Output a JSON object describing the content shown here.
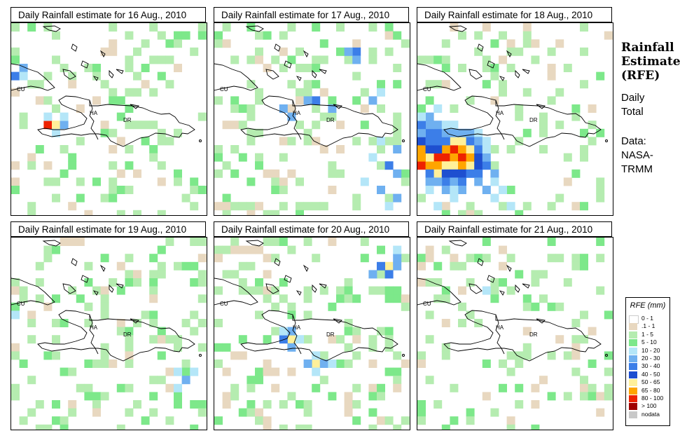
{
  "panels": [
    {
      "title": "Daily Rainfall estimate for  16 Aug., 2010",
      "seed": 16,
      "heavy": [
        {
          "r": 12,
          "c": 4,
          "v": "80-100"
        },
        {
          "r": 12,
          "c": 5,
          "v": "50-65"
        },
        {
          "r": 12,
          "c": 6,
          "v": "20-30"
        },
        {
          "r": 11,
          "c": 6,
          "v": "10-20"
        },
        {
          "r": 6,
          "c": 0,
          "v": "30-40"
        },
        {
          "r": 5,
          "c": 1,
          "v": "20-30"
        },
        {
          "r": 6,
          "c": 1,
          "v": "10-20"
        },
        {
          "r": 13,
          "c": 5,
          "v": "10-20"
        },
        {
          "r": 11,
          "c": 4,
          "v": "10-20"
        }
      ]
    },
    {
      "title": "Daily Rainfall estimate for  17 Aug., 2010",
      "seed": 17,
      "heavy": [
        {
          "r": 3,
          "c": 17,
          "v": "30-40"
        },
        {
          "r": 3,
          "c": 16,
          "v": "20-30"
        },
        {
          "r": 4,
          "c": 17,
          "v": "20-30"
        },
        {
          "r": 9,
          "c": 12,
          "v": "30-40"
        },
        {
          "r": 9,
          "c": 11,
          "v": "20-30"
        },
        {
          "r": 10,
          "c": 14,
          "v": "20-30"
        },
        {
          "r": 9,
          "c": 19,
          "v": "20-30"
        },
        {
          "r": 8,
          "c": 20,
          "v": "10-20"
        },
        {
          "r": 10,
          "c": 8,
          "v": "20-30"
        },
        {
          "r": 11,
          "c": 9,
          "v": "20-30"
        },
        {
          "r": 15,
          "c": 22,
          "v": "20-30"
        },
        {
          "r": 17,
          "c": 21,
          "v": "30-40"
        },
        {
          "r": 18,
          "c": 22,
          "v": "20-30"
        },
        {
          "r": 20,
          "c": 20,
          "v": "20-30"
        },
        {
          "r": 16,
          "c": 19,
          "v": "10-20"
        },
        {
          "r": 19,
          "c": 18,
          "v": "10-20"
        },
        {
          "r": 21,
          "c": 22,
          "v": "20-30"
        },
        {
          "r": 14,
          "c": 20,
          "v": "10-20"
        },
        {
          "r": 22,
          "c": 21,
          "v": "10-20"
        }
      ]
    },
    {
      "title": "Daily Rainfall estimate for  18 Aug., 2010",
      "seed": 18,
      "heavy": [
        {
          "r": 16,
          "c": 2,
          "v": "80-100"
        },
        {
          "r": 16,
          "c": 3,
          "v": "80-100"
        },
        {
          "r": 16,
          "c": 4,
          "v": "65-80"
        },
        {
          "r": 16,
          "c": 5,
          "v": "80-100"
        },
        {
          "r": 15,
          "c": 4,
          "v": "80-100"
        },
        {
          "r": 15,
          "c": 5,
          "v": "65-80"
        },
        {
          "r": 17,
          "c": 0,
          "v": "80-100"
        },
        {
          "r": 17,
          "c": 1,
          "v": "65-80"
        },
        {
          "r": 17,
          "c": 2,
          "v": "65-80"
        },
        {
          "r": 17,
          "c": 3,
          "v": "50-65"
        },
        {
          "r": 17,
          "c": 4,
          "v": "50-65"
        },
        {
          "r": 17,
          "c": 5,
          "v": "65-80"
        },
        {
          "r": 17,
          "c": 6,
          "v": "50-65"
        },
        {
          "r": 16,
          "c": 6,
          "v": "65-80"
        },
        {
          "r": 15,
          "c": 6,
          "v": "50-65"
        },
        {
          "r": 14,
          "c": 5,
          "v": "50-65"
        },
        {
          "r": 14,
          "c": 4,
          "v": "50-65"
        },
        {
          "r": 15,
          "c": 3,
          "v": "65-80"
        },
        {
          "r": 16,
          "c": 1,
          "v": "50-65"
        },
        {
          "r": 15,
          "c": 0,
          "v": "65-80"
        },
        {
          "r": 16,
          "c": 0,
          "v": "65-80"
        },
        {
          "r": 18,
          "c": 2,
          "v": "50-65"
        },
        {
          "r": 18,
          "c": 3,
          "v": "40-50"
        },
        {
          "r": 18,
          "c": 4,
          "v": "40-50"
        },
        {
          "r": 18,
          "c": 5,
          "v": "40-50"
        },
        {
          "r": 18,
          "c": 6,
          "v": "30-40"
        },
        {
          "r": 17,
          "c": 7,
          "v": "40-50"
        },
        {
          "r": 16,
          "c": 7,
          "v": "40-50"
        },
        {
          "r": 15,
          "c": 7,
          "v": "30-40"
        },
        {
          "r": 14,
          "c": 3,
          "v": "30-40"
        },
        {
          "r": 14,
          "c": 6,
          "v": "30-40"
        },
        {
          "r": 13,
          "c": 2,
          "v": "30-40"
        },
        {
          "r": 13,
          "c": 1,
          "v": "30-40"
        },
        {
          "r": 15,
          "c": 1,
          "v": "40-50"
        },
        {
          "r": 15,
          "c": 2,
          "v": "40-50"
        },
        {
          "r": 14,
          "c": 0,
          "v": "40-50"
        },
        {
          "r": 14,
          "c": 1,
          "v": "30-40"
        },
        {
          "r": 14,
          "c": 2,
          "v": "30-40"
        },
        {
          "r": 13,
          "c": 0,
          "v": "20-30"
        },
        {
          "r": 12,
          "c": 1,
          "v": "20-30"
        },
        {
          "r": 12,
          "c": 2,
          "v": "20-30"
        },
        {
          "r": 12,
          "c": 0,
          "v": "30-40"
        },
        {
          "r": 11,
          "c": 1,
          "v": "20-30"
        },
        {
          "r": 19,
          "c": 3,
          "v": "30-40"
        },
        {
          "r": 19,
          "c": 4,
          "v": "20-30"
        },
        {
          "r": 19,
          "c": 5,
          "v": "30-40"
        },
        {
          "r": 18,
          "c": 7,
          "v": "30-40"
        },
        {
          "r": 18,
          "c": 1,
          "v": "30-40"
        },
        {
          "r": 19,
          "c": 1,
          "v": "20-30"
        },
        {
          "r": 19,
          "c": 2,
          "v": "20-30"
        },
        {
          "r": 20,
          "c": 3,
          "v": "20-30"
        },
        {
          "r": 20,
          "c": 5,
          "v": "20-30"
        },
        {
          "r": 17,
          "c": 8,
          "v": "30-40"
        },
        {
          "r": 16,
          "c": 8,
          "v": "20-30"
        },
        {
          "r": 19,
          "c": 7,
          "v": "20-30"
        },
        {
          "r": 18,
          "c": 9,
          "v": "20-30"
        },
        {
          "r": 20,
          "c": 8,
          "v": "20-30"
        },
        {
          "r": 15,
          "c": 8,
          "v": "10-20"
        },
        {
          "r": 13,
          "c": 5,
          "v": "20-30"
        },
        {
          "r": 13,
          "c": 6,
          "v": "20-30"
        },
        {
          "r": 13,
          "c": 7,
          "v": "10-20"
        },
        {
          "r": 14,
          "c": 7,
          "v": "20-30"
        },
        {
          "r": 13,
          "c": 3,
          "v": "20-30"
        },
        {
          "r": 13,
          "c": 4,
          "v": "20-30"
        },
        {
          "r": 12,
          "c": 3,
          "v": "10-20"
        },
        {
          "r": 12,
          "c": 4,
          "v": "10-20"
        },
        {
          "r": 20,
          "c": 1,
          "v": "10-20"
        },
        {
          "r": 20,
          "c": 4,
          "v": "10-20"
        },
        {
          "r": 21,
          "c": 4,
          "v": "10-20"
        },
        {
          "r": 21,
          "c": 9,
          "v": "10-20"
        },
        {
          "r": 20,
          "c": 10,
          "v": "10-20"
        },
        {
          "r": 19,
          "c": 9,
          "v": "10-20"
        },
        {
          "r": 22,
          "c": 2,
          "v": "10-20"
        },
        {
          "r": 22,
          "c": 11,
          "v": "10-20"
        },
        {
          "r": 14,
          "c": 8,
          "v": "10-20"
        },
        {
          "r": 10,
          "c": 2,
          "v": "10-20"
        },
        {
          "r": 11,
          "c": 0,
          "v": "10-20"
        }
      ]
    },
    {
      "title": "Daily Rainfall estimate for  19 Aug., 2010",
      "seed": 19,
      "heavy": [
        {
          "r": 17,
          "c": 21,
          "v": "20-30"
        },
        {
          "r": 16,
          "c": 22,
          "v": "10-20"
        },
        {
          "r": 18,
          "c": 20,
          "v": "10-20"
        },
        {
          "r": 16,
          "c": 20,
          "v": "10-20"
        },
        {
          "r": 9,
          "c": 0,
          "v": "10-20"
        }
      ]
    },
    {
      "title": "Daily Rainfall estimate for  20 Aug., 2010",
      "seed": 20,
      "heavy": [
        {
          "r": 3,
          "c": 21,
          "v": "50-65"
        },
        {
          "r": 3,
          "c": 20,
          "v": "30-40"
        },
        {
          "r": 4,
          "c": 21,
          "v": "30-40"
        },
        {
          "r": 2,
          "c": 22,
          "v": "20-30"
        },
        {
          "r": 4,
          "c": 19,
          "v": "20-30"
        },
        {
          "r": 1,
          "c": 22,
          "v": "10-20"
        },
        {
          "r": 3,
          "c": 22,
          "v": "20-30"
        },
        {
          "r": 12,
          "c": 9,
          "v": "50-65"
        },
        {
          "r": 12,
          "c": 8,
          "v": "30-40"
        },
        {
          "r": 11,
          "c": 9,
          "v": "20-30"
        },
        {
          "r": 12,
          "c": 10,
          "v": "10-20"
        },
        {
          "r": 13,
          "c": 9,
          "v": "20-30"
        },
        {
          "r": 11,
          "c": 8,
          "v": "10-20"
        },
        {
          "r": 15,
          "c": 12,
          "v": "50-65"
        },
        {
          "r": 15,
          "c": 13,
          "v": "20-30"
        },
        {
          "r": 14,
          "c": 12,
          "v": "10-20"
        },
        {
          "r": 15,
          "c": 11,
          "v": "20-30"
        },
        {
          "r": 16,
          "c": 12,
          "v": "10-20"
        },
        {
          "r": 15,
          "c": 14,
          "v": "10-20"
        }
      ]
    },
    {
      "title": "Daily Rainfall estimate for  21 Aug., 2010",
      "seed": 21,
      "heavy": [
        {
          "r": 6,
          "c": 8,
          "v": "10-20"
        }
      ]
    }
  ],
  "map_labels": {
    "cuba": "CU",
    "haiti": "HA",
    "dominican_republic": "DR"
  },
  "side": {
    "title_lines": [
      "Rainfall",
      "Estimate",
      "(RFE)"
    ],
    "daily": "Daily",
    "total": "Total",
    "data_label": "Data:",
    "source_1": "NASA-",
    "source_2": "TRMM"
  },
  "legend": {
    "title": "RFE (mm)",
    "items": [
      {
        "label": "0 - 1",
        "color": "#ffffff"
      },
      {
        "label": ".1 - 1",
        "color": "#e8d8c0"
      },
      {
        "label": "1 - 5",
        "color": "#b5ecb0"
      },
      {
        "label": "5 - 10",
        "color": "#7de88a"
      },
      {
        "label": "10 - 20",
        "color": "#b4e6f8"
      },
      {
        "label": "20 - 30",
        "color": "#6fb0f0"
      },
      {
        "label": "30 - 40",
        "color": "#3c7ee8"
      },
      {
        "label": "40 - 50",
        "color": "#1e4fd0"
      },
      {
        "label": "50 - 65",
        "color": "#fff09a"
      },
      {
        "label": "65 - 80",
        "color": "#ffa500"
      },
      {
        "label": "80 - 100",
        "color": "#ee2200"
      },
      {
        "label": "> 100",
        "color": "#a00000"
      },
      {
        "label": "nodata",
        "color": "#c8c8c8"
      }
    ]
  }
}
